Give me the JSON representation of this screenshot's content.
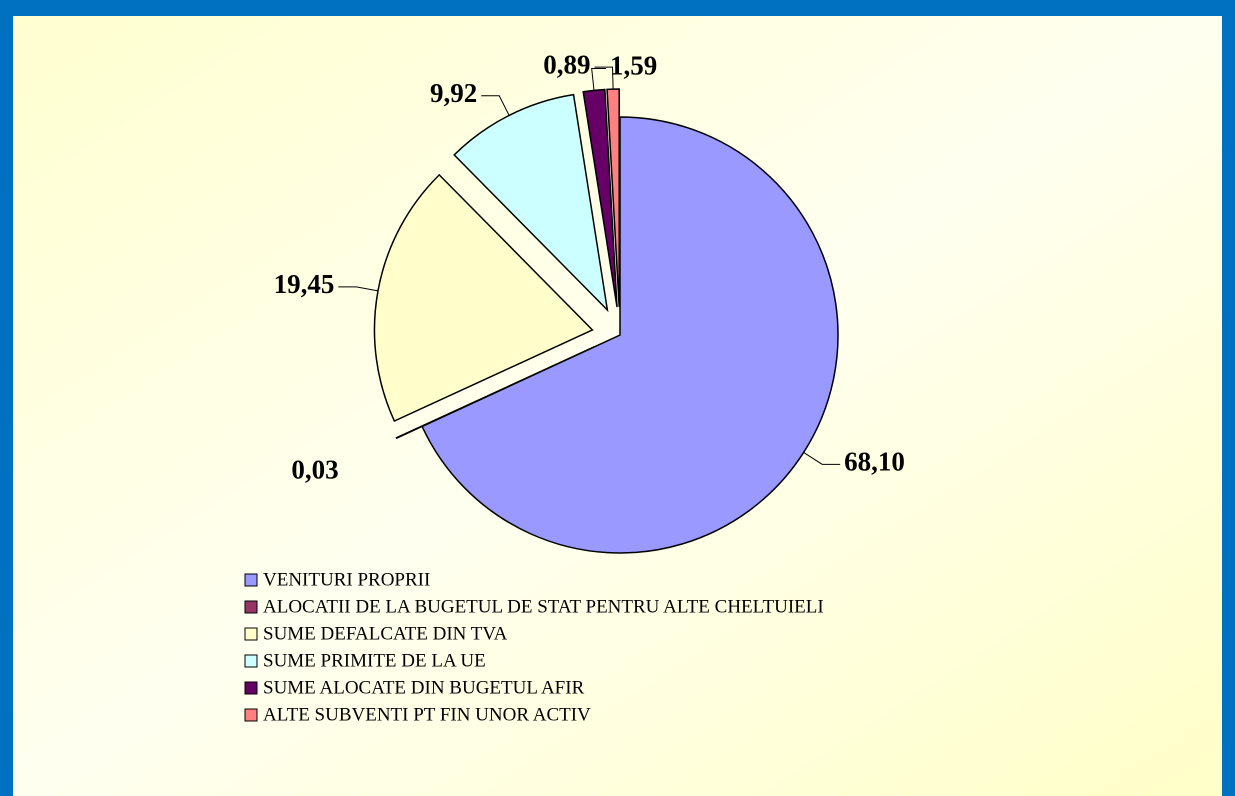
{
  "chart_data": {
    "type": "pie",
    "categories": [
      "VENITURI PROPRII",
      "ALOCATII DE LA BUGETUL DE STAT PENTRU ALTE CHELTUIELI",
      "SUME DEFALCATE DIN TVA",
      "SUME PRIMITE DE LA UE",
      "SUME ALOCATE DIN BUGETUL AFIR",
      "ALTE SUBVENTI PT FIN UNOR ACTIV"
    ],
    "values": [
      68.1,
      0.03,
      19.45,
      9.92,
      1.59,
      0.89
    ],
    "value_labels": [
      "68,10",
      "0,03",
      "19,45",
      "9,92",
      "1,59",
      "0,89"
    ],
    "colors": [
      "#9999ff",
      "#993366",
      "#ffffcc",
      "#ccffff",
      "#660066",
      "#ff8080"
    ],
    "legend": "bottom"
  }
}
